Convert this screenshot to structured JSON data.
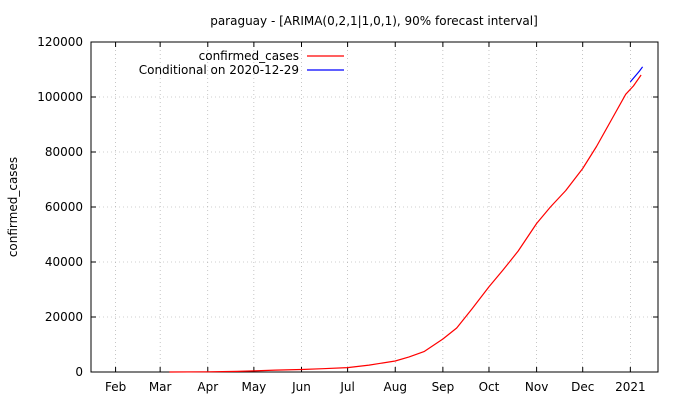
{
  "chart_data": {
    "type": "line",
    "title": "paraguay -  [ARIMA(0,2,1|1,0,1), 90% forecast interval]",
    "xlabel": "",
    "ylabel": "confirmed_cases",
    "x_unit": "date",
    "xlim": [
      "2020-01-16",
      "2021-01-19"
    ],
    "ylim": [
      0,
      120000
    ],
    "y_ticks": [
      0,
      20000,
      40000,
      60000,
      80000,
      100000,
      120000
    ],
    "x_ticks": [
      {
        "label": "Feb",
        "date": "2020-02-01"
      },
      {
        "label": "Mar",
        "date": "2020-03-01"
      },
      {
        "label": "Apr",
        "date": "2020-04-01"
      },
      {
        "label": "May",
        "date": "2020-05-01"
      },
      {
        "label": "Jun",
        "date": "2020-06-01"
      },
      {
        "label": "Jul",
        "date": "2020-07-01"
      },
      {
        "label": "Aug",
        "date": "2020-08-01"
      },
      {
        "label": "Sep",
        "date": "2020-09-01"
      },
      {
        "label": "Oct",
        "date": "2020-10-01"
      },
      {
        "label": "Nov",
        "date": "2020-11-01"
      },
      {
        "label": "Dec",
        "date": "2020-12-01"
      },
      {
        "label": "2021",
        "date": "2021-01-01"
      }
    ],
    "grid": true,
    "legend_position": "top-left",
    "series": [
      {
        "name": "confirmed_cases",
        "color": "#ff0000",
        "points": [
          [
            "2020-03-07",
            0
          ],
          [
            "2020-04-01",
            70
          ],
          [
            "2020-04-20",
            200
          ],
          [
            "2020-05-01",
            400
          ],
          [
            "2020-05-15",
            700
          ],
          [
            "2020-06-01",
            900
          ],
          [
            "2020-06-15",
            1200
          ],
          [
            "2020-07-01",
            1600
          ],
          [
            "2020-07-15",
            2500
          ],
          [
            "2020-08-01",
            4000
          ],
          [
            "2020-08-10",
            5500
          ],
          [
            "2020-08-20",
            7500
          ],
          [
            "2020-09-01",
            12000
          ],
          [
            "2020-09-10",
            16000
          ],
          [
            "2020-09-20",
            23000
          ],
          [
            "2020-10-01",
            31000
          ],
          [
            "2020-10-10",
            37000
          ],
          [
            "2020-10-20",
            44000
          ],
          [
            "2020-11-01",
            54000
          ],
          [
            "2020-11-10",
            60000
          ],
          [
            "2020-11-20",
            66000
          ],
          [
            "2020-12-01",
            74000
          ],
          [
            "2020-12-10",
            82000
          ],
          [
            "2020-12-20",
            92000
          ],
          [
            "2020-12-29",
            101000
          ],
          [
            "2021-01-03",
            104000
          ],
          [
            "2021-01-08",
            108000
          ]
        ]
      },
      {
        "name": "Conditional on 2020-12-29",
        "color": "#0000ff",
        "points": [
          [
            "2021-01-01",
            105500
          ],
          [
            "2021-01-04",
            107500
          ],
          [
            "2021-01-07",
            109500
          ],
          [
            "2021-01-09",
            111000
          ]
        ]
      }
    ]
  }
}
